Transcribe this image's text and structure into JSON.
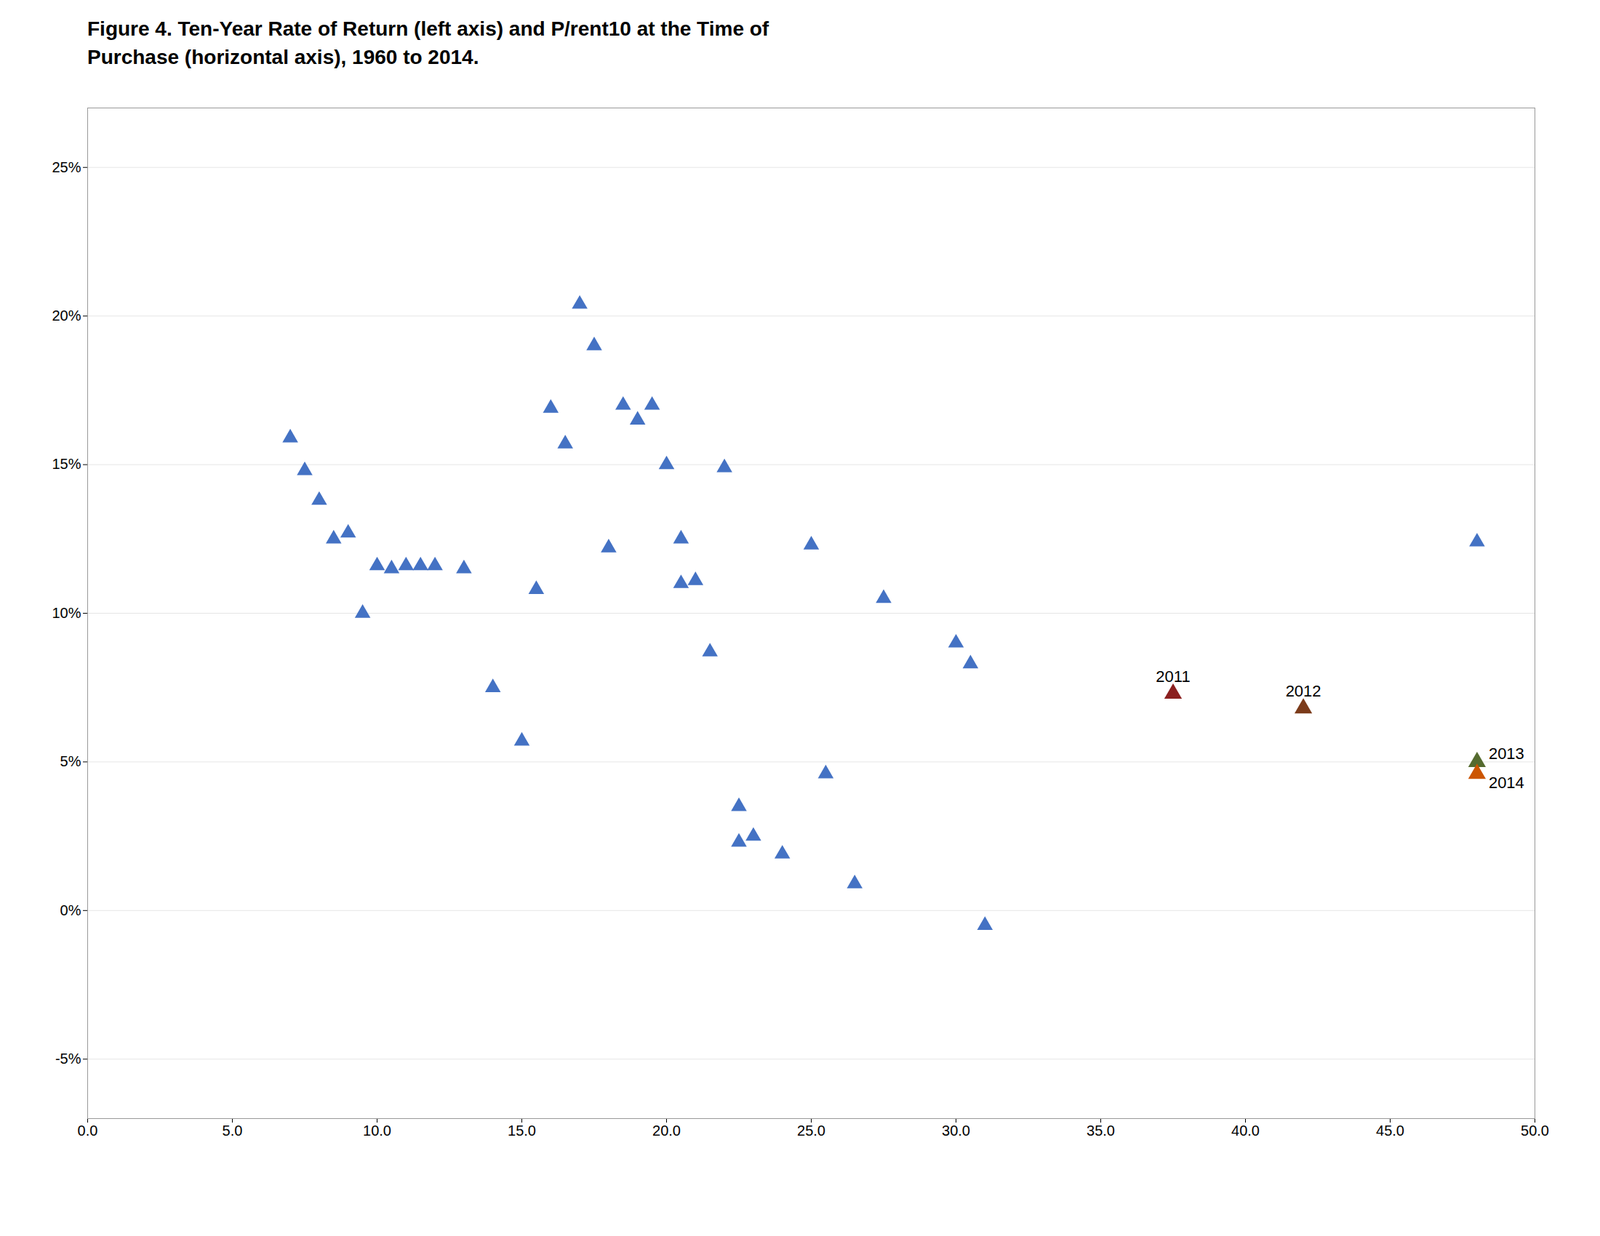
{
  "chart_data": {
    "type": "scatter",
    "title": "Figure 4.  Ten-Year Rate of Return (left axis) and P/rent10 at the Time of\nPurchase (horizontal axis), 1960 to 2014.",
    "series": [
      {
        "color": "#4472C4",
        "marker": "triangle",
        "x": [
          7.0,
          7.5,
          8.0,
          8.5,
          9.0,
          9.5,
          10.0,
          10.5,
          11.0,
          11.5,
          12.0,
          13.0,
          14.0,
          15.0,
          15.5,
          16.0,
          16.5,
          17.0,
          17.5,
          18.0,
          18.5,
          19.0,
          19.5,
          20.0,
          20.5,
          20.5,
          21.0,
          21.5,
          22.0,
          22.5,
          22.5,
          23.0,
          24.0,
          25.0,
          25.5,
          26.5,
          27.5,
          30.0,
          30.5,
          31.0,
          48.0
        ],
        "values": [
          0.159,
          0.148,
          0.138,
          0.125,
          0.127,
          0.1,
          0.116,
          0.115,
          0.116,
          0.116,
          0.116,
          0.115,
          0.075,
          0.057,
          0.108,
          0.169,
          0.157,
          0.204,
          0.19,
          0.122,
          0.17,
          0.165,
          0.17,
          0.15,
          0.125,
          0.11,
          0.111,
          0.087,
          0.149,
          0.035,
          0.023,
          0.025,
          0.019,
          0.123,
          0.046,
          0.009,
          0.105,
          0.09,
          0.083,
          -0.005,
          0.124
        ]
      },
      {
        "colors": [
          "#8B2020",
          "#7B3B1A",
          "#556B2F",
          "#CC5500"
        ],
        "marker": "triangle",
        "x": [
          37.5,
          42.0,
          48.0,
          48.0
        ],
        "values": [
          0.073,
          0.068,
          0.05,
          0.046
        ]
      }
    ],
    "annotations": [
      {
        "text": "2011",
        "x": 37.5,
        "y": 0.073
      },
      {
        "text": "2012",
        "x": 42.0,
        "y": 0.068
      },
      {
        "text": "2013",
        "x": 48.0,
        "y": 0.05
      },
      {
        "text": "2014",
        "x": 48.0,
        "y": 0.046
      }
    ],
    "xlim": [
      0.0,
      50.0
    ],
    "xticks": [
      {
        "value": 0,
        "label": "0.0"
      },
      {
        "value": 5,
        "label": "5.0"
      },
      {
        "value": 10,
        "label": "10.0"
      },
      {
        "value": 15,
        "label": "15.0"
      },
      {
        "value": 20,
        "label": "20.0"
      },
      {
        "value": 25,
        "label": "25.0"
      },
      {
        "value": 30,
        "label": "30.0"
      },
      {
        "value": 35,
        "label": "35.0"
      },
      {
        "value": 40,
        "label": "40.0"
      },
      {
        "value": 45,
        "label": "45.0"
      },
      {
        "value": 50,
        "label": "50.0"
      }
    ],
    "ylim": [
      -0.07,
      0.27
    ],
    "yticks": [
      {
        "value": -0.05,
        "label": "-5%"
      },
      {
        "value": 0.0,
        "label": "0%"
      },
      {
        "value": 0.05,
        "label": "5%"
      },
      {
        "value": 0.1,
        "label": "10%"
      },
      {
        "value": 0.15,
        "label": "15%"
      },
      {
        "value": 0.2,
        "label": "20%"
      },
      {
        "value": 0.25,
        "label": "25%"
      }
    ],
    "grid": "y"
  }
}
